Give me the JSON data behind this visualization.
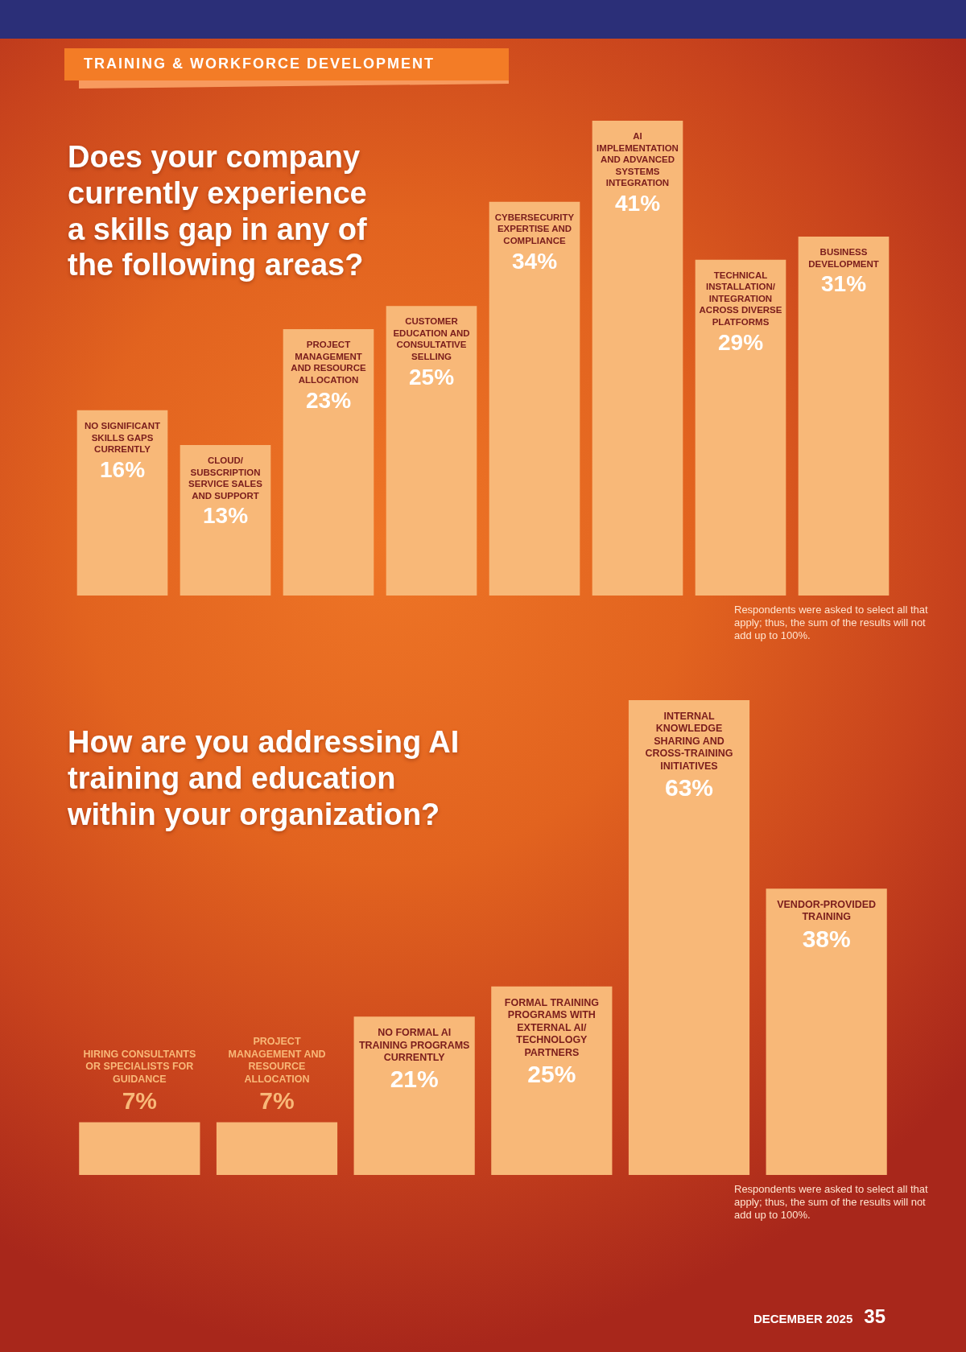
{
  "chart_data": [
    {
      "type": "bar",
      "title": "Does your company currently experience a skills gap in any of the following areas?",
      "categories": [
        "NO SIGNIFICANT SKILLS GAPS CURRENTLY",
        "CLOUD/SUBSCRIPTION SERVICE SALES AND SUPPORT",
        "PROJECT MANAGEMENT AND RESOURCE ALLOCATION",
        "CUSTOMER EDUCATION AND CONSULTATIVE SELLING",
        "CYBERSECURITY EXPERTISE AND COMPLIANCE",
        "AI IMPLEMENTATION AND ADVANCED SYSTEMS INTEGRATION",
        "TECHNICAL INSTALLATION/INTEGRATION ACROSS DIVERSE PLATFORMS",
        "BUSINESS DEVELOPMENT"
      ],
      "values": [
        16,
        13,
        23,
        25,
        34,
        41,
        29,
        31
      ],
      "value_labels": [
        "16%",
        "13%",
        "23%",
        "25%",
        "34%",
        "41%",
        "29%",
        "31%"
      ],
      "color": "#f8b878",
      "tick_labels": false,
      "annotations": [
        "TRAINING & WORKFORCE DEVELOPMENT",
        "Respondents were asked to select all that apply; thus, the sum of the results will not add up to 100%."
      ]
    },
    {
      "type": "bar",
      "title": "How are you addressing AI training and education within your organization?",
      "categories": [
        "HIRING CONSULTANTS OR SPECIALISTS FOR GUIDANCE",
        "PROJECT MANAGEMENT AND RESOURCE ALLOCATION",
        "NO FORMAL AI TRAINING PROGRAMS CURRENTLY",
        "FORMAL TRAINING PROGRAMS WITH EXTERNAL AI/TECHNOLOGY PARTNERS",
        "INTERNAL KNOWLEDGE SHARING AND CROSS-TRAINING INITIATIVES",
        "VENDOR-PROVIDED TRAINING"
      ],
      "values": [
        7,
        7,
        21,
        25,
        63,
        38
      ],
      "value_labels": [
        "7%",
        "7%",
        "21%",
        "25%",
        "63%",
        "38%"
      ],
      "color": "#f8b878",
      "tick_labels": false,
      "annotations": [
        "Respondents were asked to select all that apply; thus, the sum of the results will not add up to 100%.",
        "DECEMBER 2025",
        "35"
      ]
    }
  ]
}
